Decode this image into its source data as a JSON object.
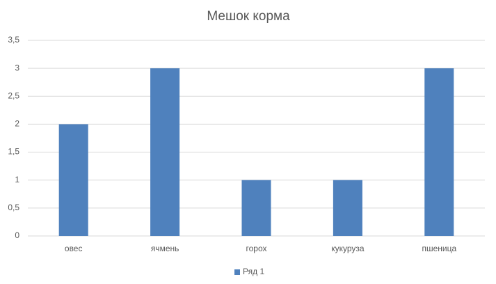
{
  "chart_data": {
    "type": "bar",
    "title": "Мешок корма",
    "categories": [
      "овес",
      "ячмень",
      "горох",
      "кукуруза",
      "пшеница"
    ],
    "series": [
      {
        "name": "Ряд 1",
        "color": "#4f81bd",
        "values": [
          2,
          3,
          1,
          1,
          3
        ]
      }
    ],
    "ylim": [
      0,
      3.5
    ],
    "yticks": [
      0,
      {
        "value": 0.5,
        "label": "0,5"
      },
      1,
      {
        "value": 1.5,
        "label": "1,5"
      },
      2,
      {
        "value": 2.5,
        "label": "2,5"
      },
      3,
      {
        "value": 3.5,
        "label": "3,5"
      }
    ],
    "grid": true,
    "legend": "bottom"
  }
}
